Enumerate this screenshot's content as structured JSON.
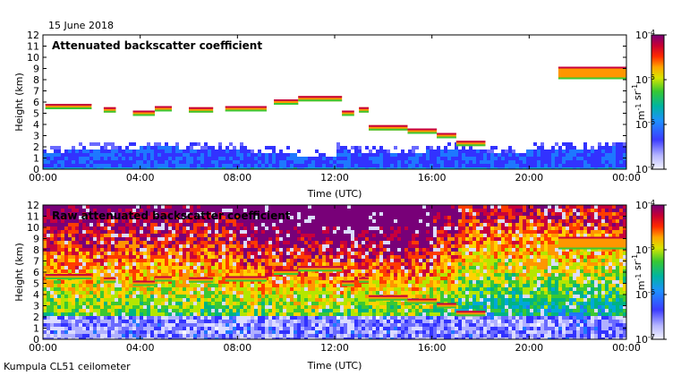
{
  "date_label": "15 June 2018",
  "footer_label": "Kumpula CL51 ceilometer",
  "chart_data": [
    {
      "type": "heatmap",
      "title": "Attenuated backscatter coefficient",
      "xlabel": "Time (UTC)",
      "ylabel": "Height (km)",
      "x_ticks": [
        "00:00",
        "04:00",
        "08:00",
        "12:00",
        "16:00",
        "20:00",
        "00:00"
      ],
      "xlim_hours": [
        0,
        24
      ],
      "y_ticks": [
        0,
        1,
        2,
        3,
        4,
        5,
        6,
        7,
        8,
        9,
        10,
        11,
        12
      ],
      "ylim": [
        0,
        12
      ],
      "colorbar": {
        "scale": "log",
        "range": [
          1e-07,
          0.0001
        ],
        "ticks": [
          "10^-7",
          "10^-6",
          "10^-5",
          "10^-4"
        ],
        "label": "m^-1 sr^-1"
      },
      "cloud_layers": [
        {
          "t_start": 0.1,
          "t_end": 2.0,
          "height": 5.6
        },
        {
          "t_start": 2.5,
          "t_end": 3.0,
          "height": 5.3
        },
        {
          "t_start": 3.7,
          "t_end": 4.6,
          "height": 5.0
        },
        {
          "t_start": 4.6,
          "t_end": 5.3,
          "height": 5.4
        },
        {
          "t_start": 6.0,
          "t_end": 7.0,
          "height": 5.3
        },
        {
          "t_start": 7.5,
          "t_end": 9.2,
          "height": 5.4
        },
        {
          "t_start": 9.5,
          "t_end": 10.5,
          "height": 6.0
        },
        {
          "t_start": 10.5,
          "t_end": 12.3,
          "height": 6.3
        },
        {
          "t_start": 12.3,
          "t_end": 12.8,
          "height": 5.0
        },
        {
          "t_start": 13.0,
          "t_end": 13.4,
          "height": 5.3
        },
        {
          "t_start": 13.4,
          "t_end": 15.0,
          "height": 3.7
        },
        {
          "t_start": 15.0,
          "t_end": 16.2,
          "height": 3.4
        },
        {
          "t_start": 16.2,
          "t_end": 17.0,
          "height": 3.0
        },
        {
          "t_start": 17.0,
          "t_end": 18.2,
          "height": 2.3
        },
        {
          "t_start": 21.2,
          "t_end": 24.0,
          "height": 8.6
        }
      ]
    },
    {
      "type": "heatmap",
      "title": "Raw attenuated backscatter coefficient",
      "xlabel": "Time (UTC)",
      "ylabel": "Height (km)",
      "x_ticks": [
        "00:00",
        "04:00",
        "08:00",
        "12:00",
        "16:00",
        "20:00",
        "00:00"
      ],
      "xlim_hours": [
        0,
        24
      ],
      "y_ticks": [
        0,
        1,
        2,
        3,
        4,
        5,
        6,
        7,
        8,
        9,
        10,
        11,
        12
      ],
      "ylim": [
        0,
        12
      ],
      "colorbar": {
        "scale": "log",
        "range": [
          1e-07,
          0.0001
        ],
        "ticks": [
          "10^-7",
          "10^-6",
          "10^-5",
          "10^-4"
        ],
        "label": "m^-1 sr^-1"
      }
    }
  ]
}
